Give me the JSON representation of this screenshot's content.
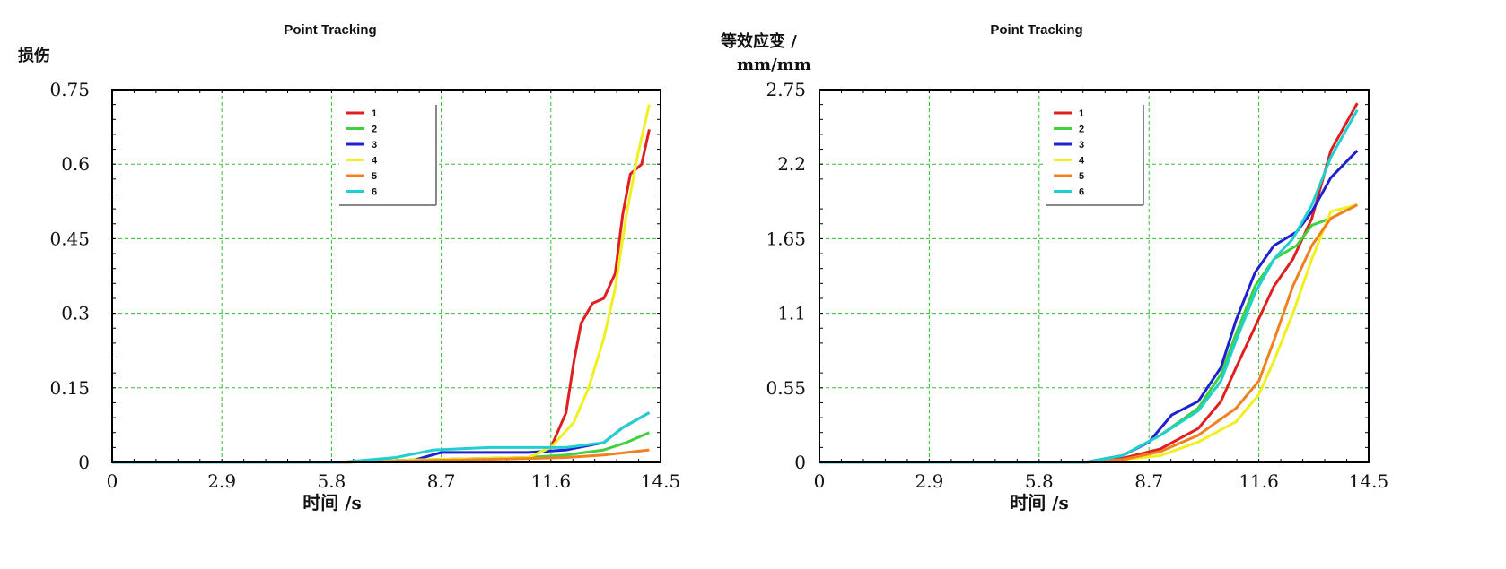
{
  "chart_data": [
    {
      "type": "line",
      "title": "Point Tracking",
      "ylabel": "损伤",
      "xlabel": "时间 /s",
      "xlim": [
        0,
        14.5
      ],
      "ylim": [
        0,
        0.75
      ],
      "x_ticks": [
        "0",
        "2.9",
        "5.8",
        "8.7",
        "11.6",
        "14.5"
      ],
      "y_ticks": [
        "0",
        "0.15",
        "0.3",
        "0.45",
        "0.6",
        "0.75"
      ],
      "grid": true,
      "legend": "top-center",
      "series": [
        {
          "name": "1",
          "color": "#e02020",
          "points": [
            [
              0,
              0
            ],
            [
              6,
              0
            ],
            [
              8,
              0.005
            ],
            [
              11,
              0.01
            ],
            [
              11.6,
              0.03
            ],
            [
              12,
              0.1
            ],
            [
              12.2,
              0.2
            ],
            [
              12.4,
              0.28
            ],
            [
              12.7,
              0.32
            ],
            [
              13,
              0.33
            ],
            [
              13.3,
              0.38
            ],
            [
              13.5,
              0.5
            ],
            [
              13.7,
              0.58
            ],
            [
              14,
              0.6
            ],
            [
              14.2,
              0.67
            ]
          ]
        },
        {
          "name": "2",
          "color": "#40d040",
          "points": [
            [
              0,
              0
            ],
            [
              6,
              0
            ],
            [
              8,
              0.005
            ],
            [
              11,
              0.01
            ],
            [
              12,
              0.015
            ],
            [
              13,
              0.025
            ],
            [
              13.6,
              0.04
            ],
            [
              14.2,
              0.06
            ]
          ]
        },
        {
          "name": "3",
          "color": "#2020d0",
          "points": [
            [
              0,
              0
            ],
            [
              6,
              0
            ],
            [
              8,
              0.005
            ],
            [
              8.7,
              0.02
            ],
            [
              11,
              0.02
            ],
            [
              12,
              0.025
            ],
            [
              13,
              0.04
            ],
            [
              13.5,
              0.07
            ],
            [
              14.2,
              0.1
            ]
          ]
        },
        {
          "name": "4",
          "color": "#f0f020",
          "points": [
            [
              0,
              0
            ],
            [
              6,
              0
            ],
            [
              8,
              0.005
            ],
            [
              11,
              0.01
            ],
            [
              11.6,
              0.03
            ],
            [
              12.2,
              0.08
            ],
            [
              12.6,
              0.15
            ],
            [
              13,
              0.25
            ],
            [
              13.3,
              0.35
            ],
            [
              13.6,
              0.5
            ],
            [
              13.9,
              0.62
            ],
            [
              14.2,
              0.72
            ]
          ]
        },
        {
          "name": "5",
          "color": "#f08020",
          "points": [
            [
              0,
              0
            ],
            [
              6,
              0
            ],
            [
              8,
              0.003
            ],
            [
              11,
              0.008
            ],
            [
              12,
              0.01
            ],
            [
              13,
              0.015
            ],
            [
              14.2,
              0.025
            ]
          ]
        },
        {
          "name": "6",
          "color": "#20d0d0",
          "points": [
            [
              0,
              0
            ],
            [
              6,
              0
            ],
            [
              7.5,
              0.01
            ],
            [
              8.5,
              0.025
            ],
            [
              10,
              0.03
            ],
            [
              11,
              0.03
            ],
            [
              12,
              0.03
            ],
            [
              13,
              0.04
            ],
            [
              13.5,
              0.07
            ],
            [
              14.2,
              0.1
            ]
          ]
        }
      ]
    },
    {
      "type": "line",
      "title": "Point Tracking",
      "ylabel": "等效应变 /\nmm/mm",
      "xlabel": "时间 /s",
      "xlim": [
        0,
        14.5
      ],
      "ylim": [
        0,
        2.75
      ],
      "x_ticks": [
        "0",
        "2.9",
        "5.8",
        "8.7",
        "11.6",
        "14.5"
      ],
      "y_ticks": [
        "0",
        "0.55",
        "1.1",
        "1.65",
        "2.2",
        "2.75"
      ],
      "grid": true,
      "legend": "top-center",
      "series": [
        {
          "name": "1",
          "color": "#e02020",
          "points": [
            [
              0,
              0
            ],
            [
              7,
              0
            ],
            [
              8,
              0.03
            ],
            [
              9,
              0.1
            ],
            [
              10,
              0.25
            ],
            [
              10.6,
              0.45
            ],
            [
              11,
              0.7
            ],
            [
              11.5,
              1
            ],
            [
              12,
              1.3
            ],
            [
              12.5,
              1.5
            ],
            [
              13,
              1.8
            ],
            [
              13.5,
              2.3
            ],
            [
              14.2,
              2.65
            ]
          ]
        },
        {
          "name": "2",
          "color": "#40d040",
          "points": [
            [
              0,
              0
            ],
            [
              7,
              0
            ],
            [
              8,
              0.05
            ],
            [
              9,
              0.2
            ],
            [
              10,
              0.4
            ],
            [
              10.6,
              0.65
            ],
            [
              11,
              0.95
            ],
            [
              11.5,
              1.3
            ],
            [
              12,
              1.5
            ],
            [
              12.6,
              1.6
            ],
            [
              13,
              1.75
            ],
            [
              13.5,
              1.8
            ],
            [
              14.2,
              1.9
            ]
          ]
        },
        {
          "name": "3",
          "color": "#2020d0",
          "points": [
            [
              0,
              0
            ],
            [
              7,
              0
            ],
            [
              8,
              0.05
            ],
            [
              8.7,
              0.15
            ],
            [
              9.3,
              0.35
            ],
            [
              10,
              0.45
            ],
            [
              10.6,
              0.7
            ],
            [
              11,
              1.05
            ],
            [
              11.5,
              1.4
            ],
            [
              12,
              1.6
            ],
            [
              12.6,
              1.7
            ],
            [
              13,
              1.85
            ],
            [
              13.5,
              2.1
            ],
            [
              14.2,
              2.3
            ]
          ]
        },
        {
          "name": "4",
          "color": "#f0f020",
          "points": [
            [
              0,
              0
            ],
            [
              7,
              0
            ],
            [
              8,
              0.02
            ],
            [
              9,
              0.05
            ],
            [
              10,
              0.15
            ],
            [
              11,
              0.3
            ],
            [
              11.6,
              0.5
            ],
            [
              12,
              0.75
            ],
            [
              12.5,
              1.1
            ],
            [
              13,
              1.5
            ],
            [
              13.5,
              1.85
            ],
            [
              14.2,
              1.9
            ]
          ]
        },
        {
          "name": "5",
          "color": "#f08020",
          "points": [
            [
              0,
              0
            ],
            [
              7,
              0
            ],
            [
              8,
              0.02
            ],
            [
              9,
              0.08
            ],
            [
              10,
              0.2
            ],
            [
              11,
              0.4
            ],
            [
              11.6,
              0.6
            ],
            [
              12,
              0.9
            ],
            [
              12.5,
              1.3
            ],
            [
              13,
              1.6
            ],
            [
              13.5,
              1.8
            ],
            [
              14.2,
              1.9
            ]
          ]
        },
        {
          "name": "6",
          "color": "#20d0d0",
          "points": [
            [
              0,
              0
            ],
            [
              7,
              0
            ],
            [
              8,
              0.05
            ],
            [
              9,
              0.2
            ],
            [
              10,
              0.38
            ],
            [
              10.6,
              0.6
            ],
            [
              11,
              0.9
            ],
            [
              11.5,
              1.25
            ],
            [
              12,
              1.5
            ],
            [
              12.5,
              1.65
            ],
            [
              13,
              1.9
            ],
            [
              13.5,
              2.25
            ],
            [
              14.2,
              2.6
            ]
          ]
        }
      ]
    }
  ]
}
